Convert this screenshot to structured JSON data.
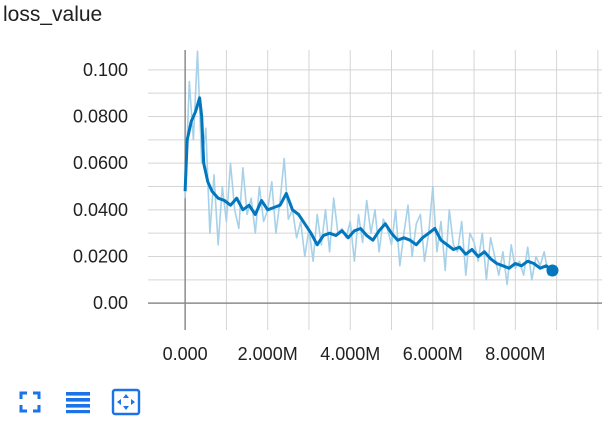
{
  "card": {
    "title": "loss_value"
  },
  "toolbar": {
    "buttons": [
      {
        "icon": "fullscreen-icon",
        "label": "Toggle fullscreen"
      },
      {
        "icon": "data-table-icon",
        "label": "Toggle data table"
      },
      {
        "icon": "fit-domain-icon",
        "label": "Fit domain to data"
      }
    ]
  },
  "colors": {
    "smoothed": "#0277bd",
    "raw": "#a6d1e9",
    "grid": "#d5d5d5",
    "axis": "#8c8c8c",
    "icon": "#1a73e8"
  },
  "chart_data": {
    "type": "line",
    "title": "loss_value",
    "xlabel": "",
    "ylabel": "",
    "xlim": [
      -900000,
      10100000
    ],
    "ylim": [
      -0.0115,
      0.1085
    ],
    "x_ticks": [
      0,
      2000000,
      4000000,
      6000000,
      8000000
    ],
    "x_tick_labels": [
      "0.000",
      "2.000M",
      "4.000M",
      "6.000M",
      "8.000M"
    ],
    "y_ticks": [
      0.0,
      0.02,
      0.04,
      0.06,
      0.08,
      0.1
    ],
    "y_tick_labels": [
      "0.00",
      "0.0200",
      "0.0400",
      "0.0600",
      "0.0800",
      "0.100"
    ],
    "grid": true,
    "series": [
      {
        "role": "raw",
        "x": [
          0,
          100000,
          200000,
          300000,
          400000,
          500000,
          600000,
          700000,
          800000,
          900000,
          1000000,
          1100000,
          1200000,
          1300000,
          1400000,
          1500000,
          1600000,
          1700000,
          1800000,
          1900000,
          2000000,
          2100000,
          2200000,
          2300000,
          2400000,
          2500000,
          2600000,
          2700000,
          2800000,
          2900000,
          3000000,
          3100000,
          3200000,
          3300000,
          3400000,
          3500000,
          3600000,
          3700000,
          3800000,
          3900000,
          4000000,
          4100000,
          4200000,
          4300000,
          4400000,
          4500000,
          4600000,
          4700000,
          4800000,
          4900000,
          5000000,
          5100000,
          5200000,
          5300000,
          5400000,
          5500000,
          5600000,
          5700000,
          5800000,
          5900000,
          6000000,
          6100000,
          6200000,
          6300000,
          6400000,
          6500000,
          6600000,
          6700000,
          6800000,
          6900000,
          7000000,
          7100000,
          7200000,
          7300000,
          7400000,
          7500000,
          7600000,
          7700000,
          7800000,
          7900000,
          8000000,
          8100000,
          8200000,
          8300000,
          8400000,
          8500000,
          8600000,
          8700000,
          8800000,
          8900000
        ],
        "values": [
          0.045,
          0.095,
          0.07,
          0.108,
          0.06,
          0.075,
          0.03,
          0.055,
          0.025,
          0.05,
          0.035,
          0.06,
          0.04,
          0.032,
          0.058,
          0.038,
          0.045,
          0.03,
          0.05,
          0.035,
          0.04,
          0.052,
          0.03,
          0.044,
          0.062,
          0.036,
          0.04,
          0.028,
          0.035,
          0.02,
          0.032,
          0.018,
          0.038,
          0.025,
          0.04,
          0.022,
          0.045,
          0.03,
          0.032,
          0.028,
          0.035,
          0.018,
          0.038,
          0.026,
          0.044,
          0.03,
          0.04,
          0.022,
          0.036,
          0.032,
          0.025,
          0.04,
          0.016,
          0.03,
          0.042,
          0.02,
          0.034,
          0.038,
          0.018,
          0.03,
          0.05,
          0.022,
          0.035,
          0.014,
          0.04,
          0.025,
          0.022,
          0.035,
          0.012,
          0.03,
          0.026,
          0.018,
          0.03,
          0.01,
          0.028,
          0.02,
          0.012,
          0.022,
          0.008,
          0.025,
          0.015,
          0.018,
          0.012,
          0.024,
          0.01,
          0.02,
          0.016,
          0.022,
          0.012,
          0.014
        ]
      },
      {
        "role": "smoothed",
        "x": [
          0,
          50000,
          150000,
          250000,
          350000,
          400000,
          450000,
          550000,
          650000,
          800000,
          950000,
          1100000,
          1250000,
          1400000,
          1550000,
          1700000,
          1850000,
          2000000,
          2150000,
          2300000,
          2450000,
          2600000,
          2750000,
          2900000,
          3050000,
          3200000,
          3350000,
          3500000,
          3650000,
          3800000,
          3950000,
          4100000,
          4250000,
          4400000,
          4550000,
          4700000,
          4850000,
          5000000,
          5150000,
          5300000,
          5450000,
          5600000,
          5750000,
          5900000,
          6050000,
          6200000,
          6350000,
          6500000,
          6650000,
          6800000,
          6950000,
          7100000,
          7250000,
          7400000,
          7550000,
          7700000,
          7850000,
          8000000,
          8150000,
          8300000,
          8450000,
          8600000,
          8750000,
          8900000
        ],
        "values": [
          0.048,
          0.07,
          0.078,
          0.082,
          0.088,
          0.08,
          0.06,
          0.052,
          0.048,
          0.045,
          0.044,
          0.042,
          0.045,
          0.04,
          0.042,
          0.038,
          0.044,
          0.04,
          0.041,
          0.042,
          0.047,
          0.04,
          0.038,
          0.034,
          0.03,
          0.025,
          0.029,
          0.03,
          0.029,
          0.031,
          0.028,
          0.031,
          0.032,
          0.029,
          0.027,
          0.031,
          0.034,
          0.03,
          0.027,
          0.028,
          0.027,
          0.025,
          0.028,
          0.03,
          0.032,
          0.027,
          0.025,
          0.023,
          0.024,
          0.021,
          0.023,
          0.02,
          0.022,
          0.019,
          0.017,
          0.016,
          0.015,
          0.017,
          0.016,
          0.018,
          0.017,
          0.015,
          0.016,
          0.014
        ]
      }
    ]
  }
}
